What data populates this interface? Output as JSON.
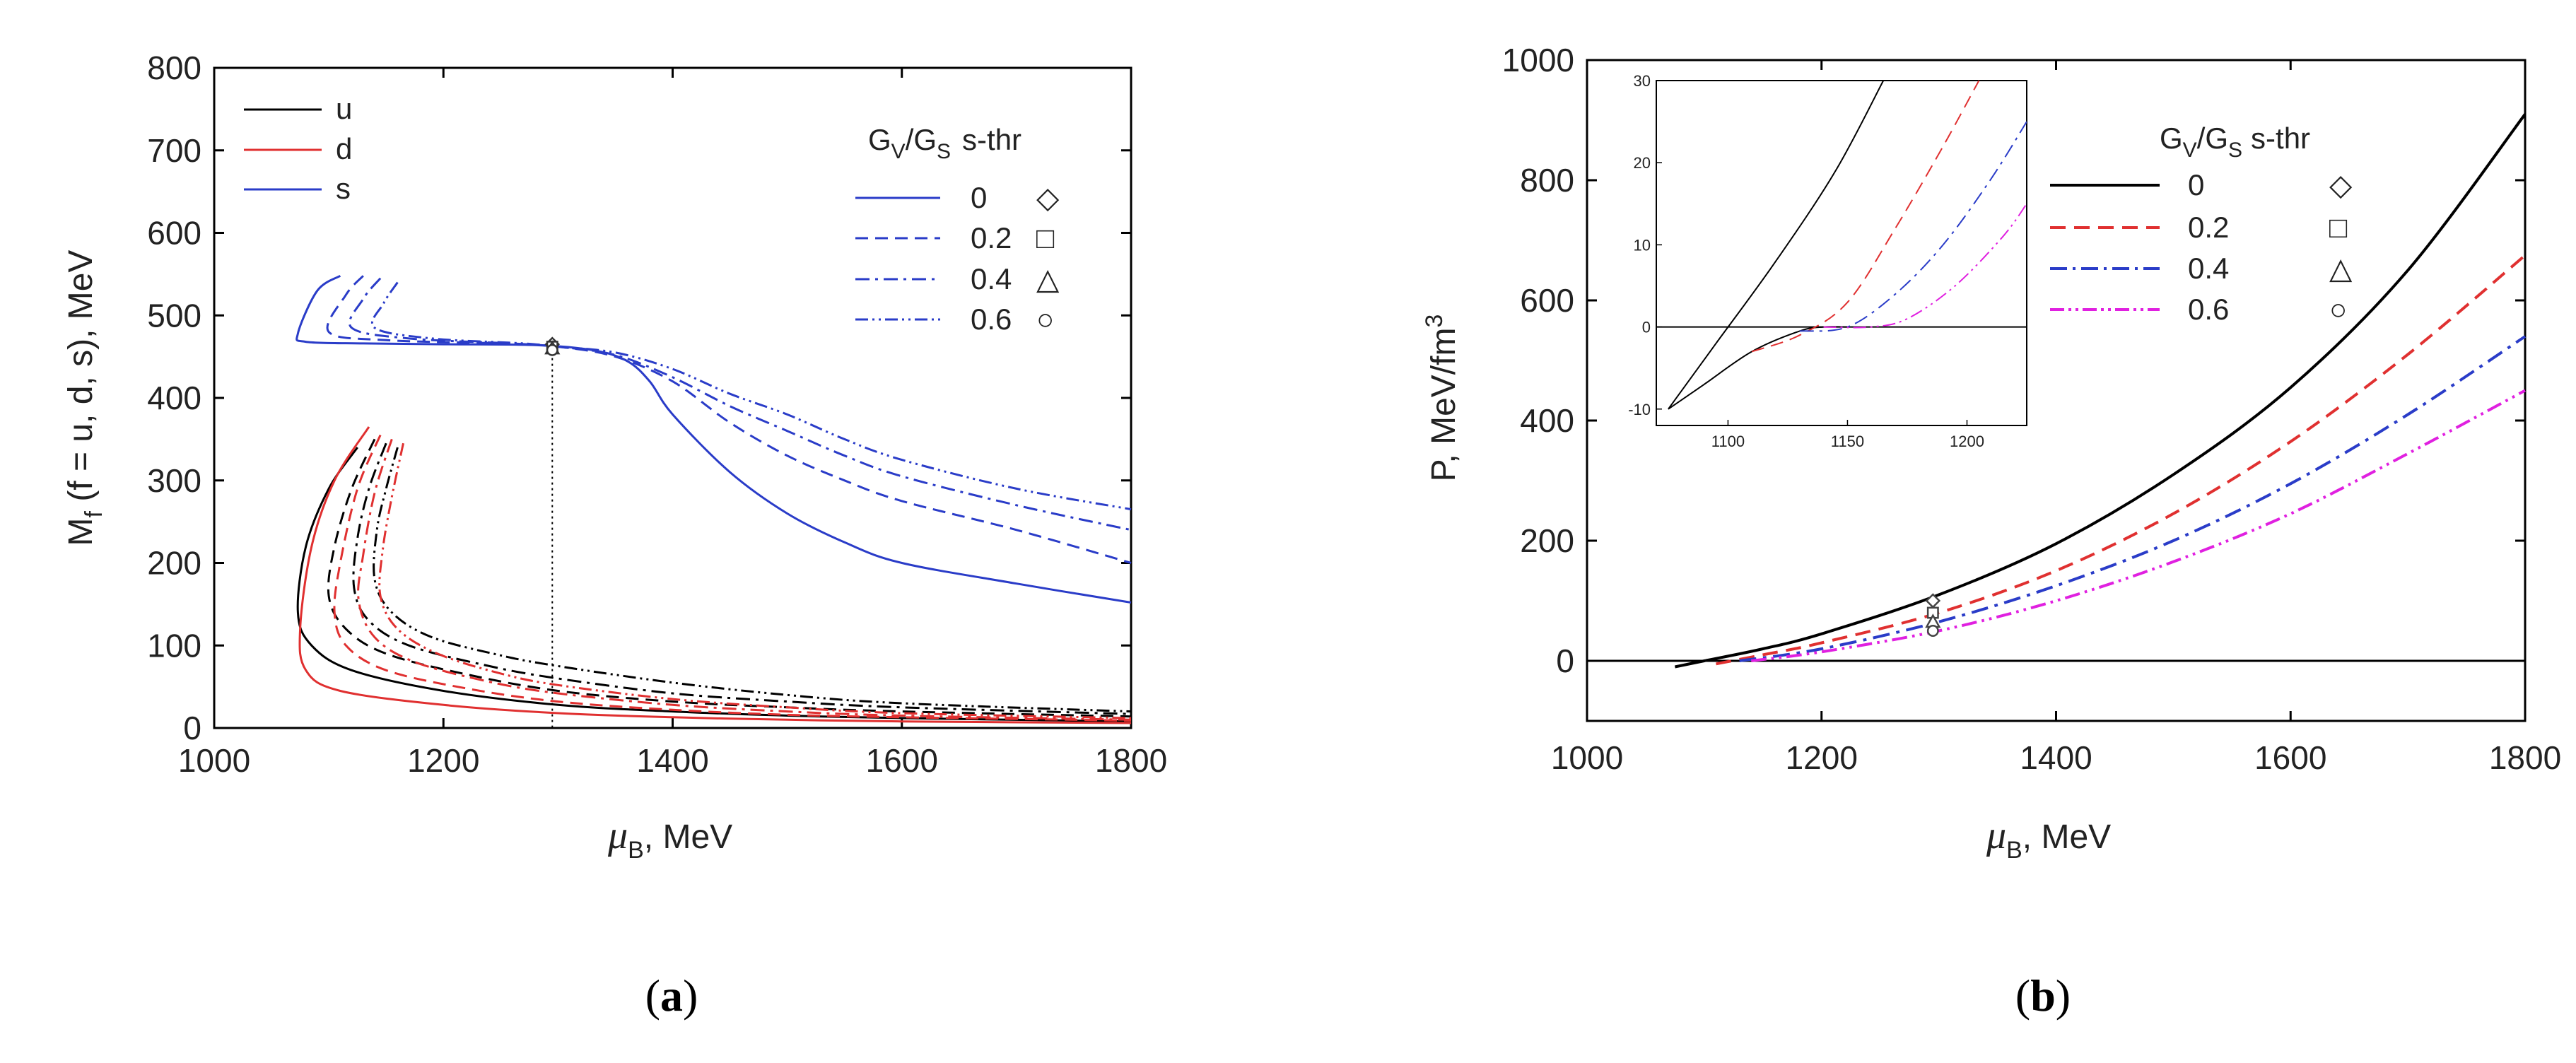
{
  "chart_data": [
    {
      "type": "line",
      "panel_label": "(a)",
      "caption_letter": "a",
      "ylabel": "M_f (f = u, d, s),   MeV",
      "ylabel_main": "M",
      "ylabel_sub": "f",
      "ylabel_rest": " (f = u, d, s),   MeV",
      "xlabel_sym": "μ",
      "xlabel_sub": "B",
      "xlabel_rest": ",  MeV",
      "xlim": [
        1000,
        1800
      ],
      "ylim": [
        0,
        800
      ],
      "xticks": [
        "1000",
        "1200",
        "1400",
        "1600",
        "1800"
      ],
      "yticks": [
        "0",
        "100",
        "200",
        "300",
        "400",
        "500",
        "600",
        "700",
        "800"
      ],
      "flavor_legend": [
        {
          "label": "u",
          "color": "#000000"
        },
        {
          "label": "d",
          "color": "#e03030"
        },
        {
          "label": "s",
          "color": "#2a3cc8"
        }
      ],
      "gv_legend_title": "G_V/G_S  s-thr",
      "gv_title_g": "G",
      "gv_title_v": "V",
      "gv_title_slash": "/G",
      "gv_title_s": "S",
      "gv_title_thr": "s-thr",
      "gv_legend": [
        {
          "label": "0",
          "style": "solid",
          "marker": "◇"
        },
        {
          "label": "0.2",
          "style": "dash",
          "marker": "□"
        },
        {
          "label": "0.4",
          "style": "dashdot",
          "marker": "△"
        },
        {
          "label": "0.6",
          "style": "dashdotdot",
          "marker": "○"
        }
      ],
      "series": [
        {
          "name": "s, GV/GS=0",
          "flavor": "s",
          "gv": 0,
          "x": [
            1110,
            1090,
            1073,
            1080,
            1130,
            1200,
            1280,
            1330,
            1360,
            1380,
            1400,
            1450,
            1500,
            1550,
            1600,
            1700,
            1800
          ],
          "y": [
            548,
            530,
            478,
            468,
            466,
            465,
            464,
            458,
            445,
            420,
            380,
            310,
            260,
            225,
            200,
            175,
            152
          ]
        },
        {
          "name": "s, GV/GS=0.2",
          "flavor": "s",
          "gv": 0.2,
          "x": [
            1130,
            1115,
            1100,
            1150,
            1250,
            1300,
            1350,
            1400,
            1450,
            1500,
            1550,
            1600,
            1700,
            1800
          ],
          "y": [
            548,
            525,
            480,
            470,
            466,
            462,
            450,
            420,
            370,
            330,
            300,
            275,
            240,
            200
          ]
        },
        {
          "name": "s, GV/GS=0.4",
          "flavor": "s",
          "gv": 0.4,
          "x": [
            1145,
            1130,
            1120,
            1170,
            1260,
            1300,
            1350,
            1400,
            1450,
            1500,
            1550,
            1600,
            1700,
            1800
          ],
          "y": [
            545,
            520,
            485,
            472,
            466,
            462,
            452,
            425,
            390,
            360,
            330,
            305,
            270,
            240
          ]
        },
        {
          "name": "s, GV/GS=0.6",
          "flavor": "s",
          "gv": 0.6,
          "x": [
            1160,
            1148,
            1140,
            1190,
            1270,
            1300,
            1350,
            1400,
            1450,
            1500,
            1550,
            1600,
            1700,
            1800
          ],
          "y": [
            540,
            515,
            485,
            472,
            466,
            462,
            455,
            435,
            405,
            380,
            350,
            325,
            290,
            265
          ]
        },
        {
          "name": "u, GV/GS=0",
          "flavor": "u",
          "gv": 0,
          "x": [
            1125,
            1100,
            1080,
            1073,
            1085,
            1120,
            1200,
            1300,
            1400,
            1500,
            1600,
            1800
          ],
          "y": [
            340,
            290,
            220,
            140,
            100,
            70,
            45,
            28,
            20,
            15,
            12,
            8
          ]
        },
        {
          "name": "d, GV/GS=0",
          "flavor": "d",
          "gv": 0,
          "x": [
            1135,
            1105,
            1085,
            1075,
            1080,
            1110,
            1200,
            1300,
            1400,
            1500,
            1600,
            1800
          ],
          "y": [
            365,
            300,
            220,
            120,
            70,
            45,
            28,
            18,
            13,
            10,
            8,
            6
          ]
        },
        {
          "name": "u, GV/GS=0.2",
          "flavor": "u",
          "gv": 0.2,
          "x": [
            1140,
            1120,
            1105,
            1100,
            1115,
            1150,
            1220,
            1300,
            1400,
            1500,
            1600,
            1800
          ],
          "y": [
            350,
            290,
            220,
            160,
            120,
            90,
            65,
            45,
            32,
            25,
            20,
            14
          ]
        },
        {
          "name": "d, GV/GS=0.2",
          "flavor": "d",
          "gv": 0.2,
          "x": [
            1145,
            1125,
            1110,
            1105,
            1115,
            1150,
            1220,
            1300,
            1400,
            1500,
            1600,
            1800
          ],
          "y": [
            355,
            290,
            200,
            140,
            100,
            70,
            48,
            32,
            22,
            16,
            13,
            9
          ]
        },
        {
          "name": "u, GV/GS=0.4",
          "flavor": "u",
          "gv": 0.4,
          "x": [
            1150,
            1135,
            1125,
            1122,
            1135,
            1170,
            1240,
            1300,
            1400,
            1500,
            1600,
            1800
          ],
          "y": [
            345,
            290,
            230,
            170,
            130,
            100,
            75,
            60,
            42,
            32,
            25,
            17
          ]
        },
        {
          "name": "d, GV/GS=0.4",
          "flavor": "d",
          "gv": 0.4,
          "x": [
            1155,
            1140,
            1130,
            1126,
            1140,
            1175,
            1240,
            1300,
            1400,
            1500,
            1600,
            1800
          ],
          "y": [
            350,
            285,
            210,
            155,
            110,
            80,
            56,
            42,
            28,
            20,
            15,
            10
          ]
        },
        {
          "name": "u, GV/GS=0.6",
          "flavor": "u",
          "gv": 0.6,
          "x": [
            1160,
            1150,
            1142,
            1140,
            1155,
            1190,
            1250,
            1300,
            1400,
            1500,
            1600,
            1800
          ],
          "y": [
            340,
            290,
            240,
            180,
            140,
            110,
            88,
            75,
            55,
            40,
            30,
            20
          ]
        },
        {
          "name": "d, GV/GS=0.6",
          "flavor": "d",
          "gv": 0.6,
          "x": [
            1165,
            1155,
            1147,
            1145,
            1160,
            1195,
            1250,
            1300,
            1400,
            1500,
            1600,
            1800
          ],
          "y": [
            345,
            280,
            215,
            160,
            120,
            90,
            66,
            52,
            35,
            25,
            18,
            12
          ]
        }
      ],
      "vline_x": 1295,
      "markers": [
        {
          "x": 1295,
          "y": 465,
          "symbol": "diamond"
        },
        {
          "x": 1295,
          "y": 462,
          "symbol": "square"
        },
        {
          "x": 1295,
          "y": 460,
          "symbol": "triangle"
        },
        {
          "x": 1295,
          "y": 458,
          "symbol": "circle"
        }
      ]
    },
    {
      "type": "line",
      "panel_label": "(b)",
      "caption_letter": "b",
      "ylabel_main": "P,   MeV/fm",
      "ylabel_sup": "3",
      "xlabel_sym": "μ",
      "xlabel_sub": "B",
      "xlabel_rest": ",   MeV",
      "xlim": [
        1000,
        1800
      ],
      "ylim": [
        -100,
        1000
      ],
      "xticks": [
        "1000",
        "1200",
        "1400",
        "1600",
        "1800"
      ],
      "yticks": [
        "0",
        "200",
        "400",
        "600",
        "800",
        "1000"
      ],
      "gv_title_g": "G",
      "gv_title_v": "V",
      "gv_title_slash": "/G",
      "gv_title_s": "S",
      "gv_title_thr": "s-thr",
      "legend": [
        {
          "label": "0",
          "color": "#000000",
          "style": "solid",
          "marker": "◇"
        },
        {
          "label": "0.2",
          "color": "#e03030",
          "style": "dash",
          "marker": "□"
        },
        {
          "label": "0.4",
          "color": "#2a3cc8",
          "style": "dashdot",
          "marker": "△"
        },
        {
          "label": "0.6",
          "color": "#e020e0",
          "style": "dashdotdot",
          "marker": "○"
        }
      ],
      "series": [
        {
          "name": "GV/GS=0",
          "color": "#000000",
          "style": "solid",
          "x": [
            1075,
            1100,
            1150,
            1200,
            1300,
            1400,
            1500,
            1600,
            1700,
            1800
          ],
          "y": [
            -10,
            0,
            20,
            45,
            110,
            195,
            310,
            455,
            650,
            910
          ]
        },
        {
          "name": "GV/GS=0.2",
          "color": "#e03030",
          "style": "dash",
          "x": [
            1110,
            1150,
            1200,
            1300,
            1400,
            1500,
            1600,
            1700,
            1800
          ],
          "y": [
            -5,
            10,
            30,
            80,
            150,
            245,
            365,
            510,
            675
          ]
        },
        {
          "name": "GV/GS=0.4",
          "color": "#2a3cc8",
          "style": "dashdot",
          "x": [
            1130,
            1200,
            1300,
            1400,
            1500,
            1600,
            1700,
            1800
          ],
          "y": [
            0,
            20,
            65,
            125,
            200,
            295,
            410,
            540
          ]
        },
        {
          "name": "GV/GS=0.6",
          "color": "#e020e0",
          "style": "dashdotdot",
          "x": [
            1140,
            1200,
            1300,
            1400,
            1500,
            1600,
            1700,
            1800
          ],
          "y": [
            0,
            15,
            50,
            100,
            165,
            245,
            345,
            450
          ]
        }
      ],
      "vline_x": 1295,
      "markers": [
        {
          "x": 1295,
          "y": 100,
          "symbol": "diamond"
        },
        {
          "x": 1295,
          "y": 80,
          "symbol": "square"
        },
        {
          "x": 1295,
          "y": 65,
          "symbol": "triangle"
        },
        {
          "x": 1295,
          "y": 50,
          "symbol": "circle"
        }
      ],
      "inset": {
        "xlim": [
          1070,
          1225
        ],
        "ylim": [
          -12,
          30
        ],
        "xticks": [
          "1100",
          "1150",
          "1200"
        ],
        "yticks": [
          "-10",
          "0",
          "10",
          "20",
          "30"
        ],
        "series": [
          {
            "name": "inset GV/GS=0",
            "color": "#000000",
            "style": "solid",
            "x": [
              1075,
              1090,
              1110,
              1130,
              1140,
              1150
            ],
            "y": [
              -10,
              -7,
              -3,
              -0.5,
              0,
              0
            ]
          },
          {
            "name": "inset GV/GS=0 line",
            "color": "#000000",
            "style": "solid",
            "x": [
              1075,
              1095,
              1120,
              1145,
              1165
            ],
            "y": [
              -10,
              -2,
              8,
              19,
              30
            ]
          },
          {
            "name": "inset GV/GS=0.2",
            "color": "#e03030",
            "style": "dash",
            "x": [
              1110,
              1130,
              1150,
              1170,
              1190,
              1205
            ],
            "y": [
              -3,
              -1,
              3,
              12,
              22,
              30
            ]
          },
          {
            "name": "inset GV/GS=0.4",
            "color": "#2a3cc8",
            "style": "dashdot",
            "x": [
              1130,
              1150,
              1170,
              1190,
              1210,
              1225
            ],
            "y": [
              -0.5,
              0,
              4,
              10,
              18,
              25
            ]
          },
          {
            "name": "inset GV/GS=0.6",
            "color": "#e020e0",
            "style": "dashdotdot",
            "x": [
              1140,
              1160,
              1175,
              1195,
              1215,
              1225
            ],
            "y": [
              0,
              0,
              1,
              5,
              11,
              15
            ]
          }
        ]
      }
    }
  ]
}
